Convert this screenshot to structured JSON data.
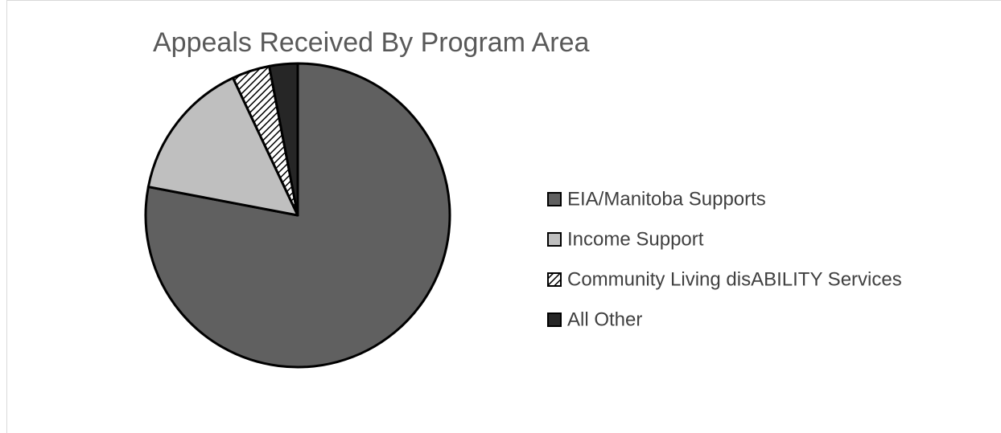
{
  "chart_data": {
    "type": "pie",
    "title": "Appeals Received By Program Area",
    "categories": [
      "EIA/Manitoba Supports",
      "Income Support",
      "Community Living disABILITY Services",
      "All Other"
    ],
    "values": [
      78,
      15,
      4,
      3
    ],
    "colors": [
      "#606060",
      "#bfbfbf",
      "#ffffff",
      "#262626"
    ],
    "hatch": [
      false,
      false,
      true,
      false
    ],
    "start_angle": 0,
    "direction": "clockwise",
    "legend": "right"
  }
}
